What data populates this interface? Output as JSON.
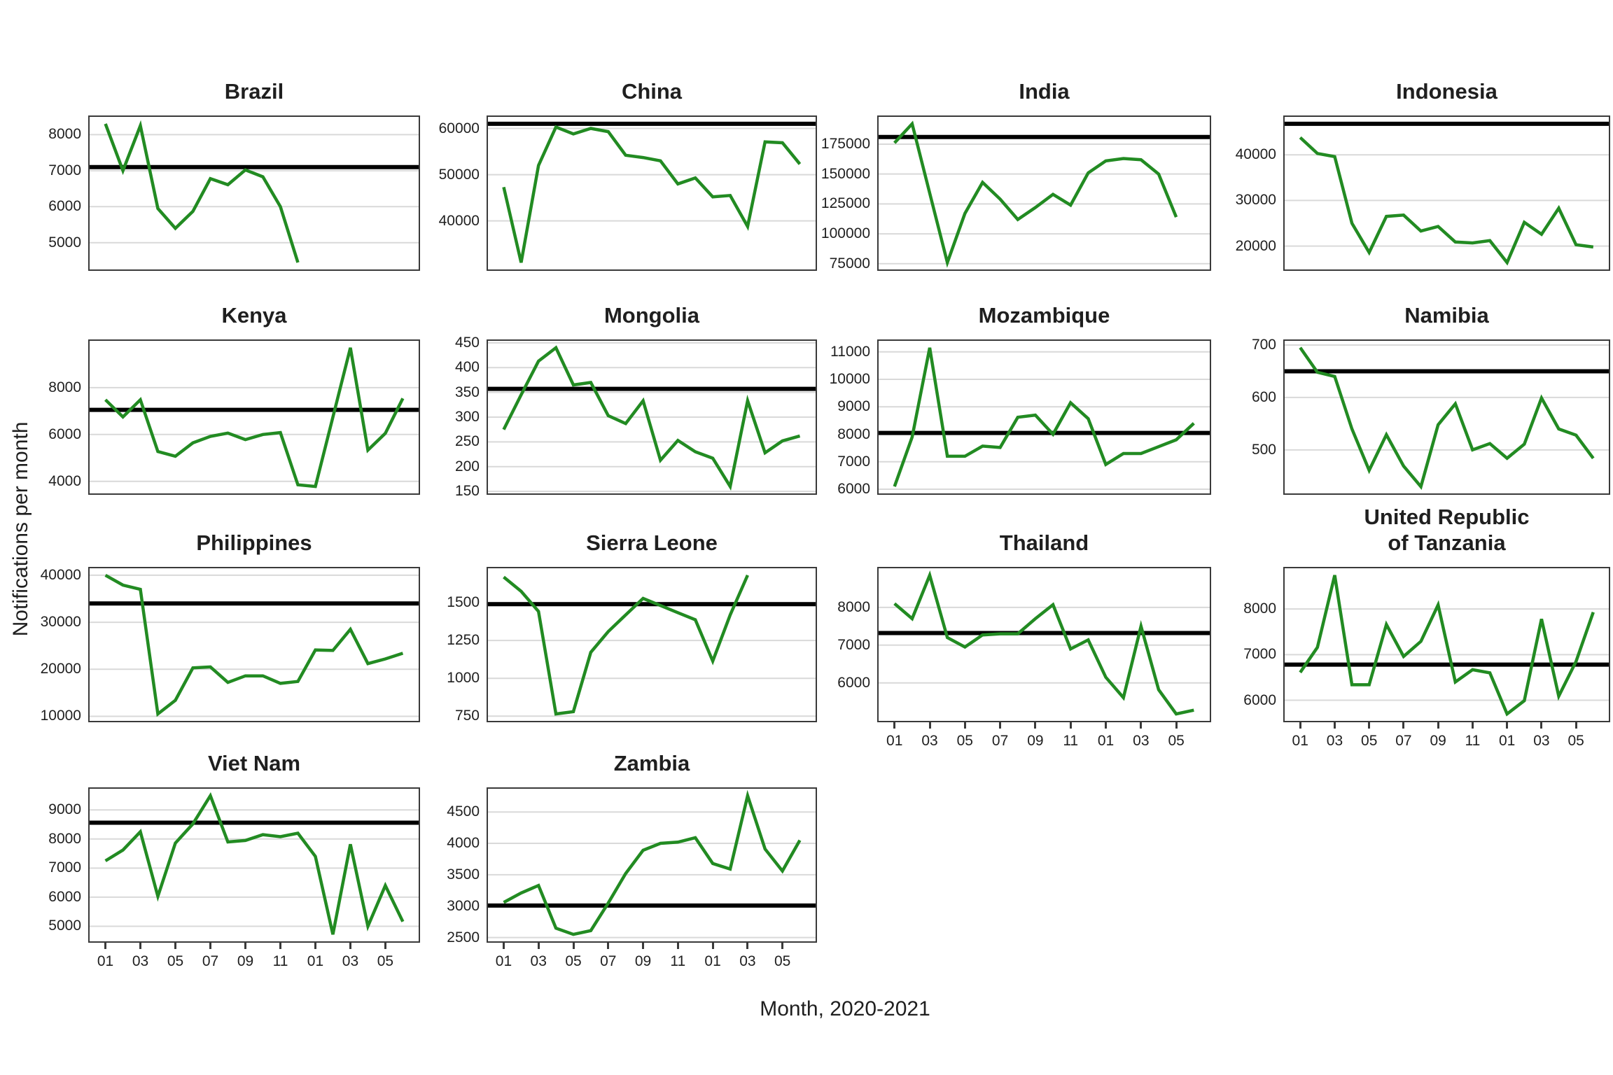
{
  "figure": {
    "y_axis_label": "Notifications per month",
    "x_axis_label": "Month, 2020-2021",
    "line_color": "#228B22",
    "ref_line_color": "#000000",
    "grid_color": "#d9d9d9",
    "border_color": "#3a3a3a",
    "x_tick_labels": [
      "01",
      "03",
      "05",
      "07",
      "09",
      "11",
      "01",
      "03",
      "05"
    ],
    "x_tick_indices": [
      0,
      2,
      4,
      6,
      8,
      10,
      12,
      14,
      16
    ],
    "n_slots": 18
  },
  "chart_data": [
    {
      "type": "line",
      "id": "brazil",
      "title": "Brazil",
      "col": 0,
      "row": 0,
      "show_x": false,
      "yticks": [
        5000,
        6000,
        7000,
        8000
      ],
      "ylim": [
        4257,
        8493
      ],
      "ref": 7100,
      "values": [
        8300,
        7000,
        8250,
        5950,
        5400,
        5870,
        6780,
        6610,
        7020,
        6830,
        6000,
        4450
      ]
    },
    {
      "type": "line",
      "id": "china",
      "title": "China",
      "col": 1,
      "row": 0,
      "show_x": false,
      "yticks": [
        40000,
        50000,
        60000
      ],
      "ylim": [
        29500,
        62500
      ],
      "ref": 61000,
      "values": [
        47300,
        31000,
        52000,
        60300,
        58800,
        60000,
        59300,
        54200,
        53700,
        53000,
        48000,
        49300,
        45200,
        45500,
        38800,
        57100,
        56900,
        52300
      ]
    },
    {
      "type": "line",
      "id": "india",
      "title": "India",
      "col": 2,
      "row": 0,
      "show_x": false,
      "yticks": [
        75000,
        100000,
        125000,
        150000,
        175000
      ],
      "ylim": [
        70200,
        197800
      ],
      "ref": 181000,
      "values": [
        176000,
        192000,
        134000,
        76000,
        117000,
        143000,
        129000,
        112000,
        122000,
        133000,
        124000,
        151000,
        161000,
        163000,
        162000,
        150000,
        114000
      ]
    },
    {
      "type": "line",
      "id": "indonesia",
      "title": "Indonesia",
      "col": 3,
      "row": 0,
      "show_x": false,
      "yticks": [
        20000,
        30000,
        40000
      ],
      "ylim": [
        14880,
        48320
      ],
      "ref": 46800,
      "values": [
        43800,
        40300,
        39600,
        25000,
        18600,
        26500,
        26800,
        23300,
        24300,
        20900,
        20700,
        21200,
        16400,
        25200,
        22600,
        28300,
        20300,
        19800
      ]
    },
    {
      "type": "line",
      "id": "kenya",
      "title": "Kenya",
      "col": 0,
      "row": 1,
      "show_x": false,
      "yticks": [
        4000,
        6000,
        8000
      ],
      "ylim": [
        3484,
        9996
      ],
      "ref": 7050,
      "values": [
        7480,
        6750,
        7480,
        5270,
        5070,
        5640,
        5920,
        6060,
        5780,
        6000,
        6080,
        3850,
        3780,
        6740,
        9700,
        5330,
        6050,
        7540
      ]
    },
    {
      "type": "line",
      "id": "mongolia",
      "title": "Mongolia",
      "col": 1,
      "row": 1,
      "show_x": false,
      "yticks": [
        150,
        200,
        250,
        300,
        350,
        400,
        450
      ],
      "ylim": [
        146,
        454
      ],
      "ref": 357,
      "values": [
        275,
        345,
        413,
        440,
        365,
        370,
        303,
        287,
        333,
        213,
        253,
        230,
        217,
        160,
        333,
        228,
        252,
        262
      ]
    },
    {
      "type": "line",
      "id": "mozambique",
      "title": "Mozambique",
      "col": 2,
      "row": 1,
      "show_x": false,
      "yticks": [
        6000,
        7000,
        8000,
        9000,
        10000,
        11000
      ],
      "ylim": [
        5848,
        11402
      ],
      "ref": 8050,
      "values": [
        6100,
        7900,
        11150,
        7200,
        7200,
        7570,
        7520,
        8620,
        8700,
        8000,
        9150,
        8570,
        6900,
        7300,
        7300,
        7550,
        7800,
        8400
      ]
    },
    {
      "type": "line",
      "id": "namibia",
      "title": "Namibia",
      "col": 3,
      "row": 1,
      "show_x": false,
      "yticks": [
        500,
        600,
        700
      ],
      "ylim": [
        417,
        708
      ],
      "ref": 650,
      "values": [
        695,
        648,
        640,
        540,
        461,
        529,
        469,
        430,
        548,
        588,
        500,
        512,
        484,
        511,
        599,
        540,
        528,
        484
      ]
    },
    {
      "type": "line",
      "id": "philippines",
      "title": "Philippines",
      "col": 0,
      "row": 2,
      "show_x": false,
      "yticks": [
        10000,
        20000,
        30000,
        40000
      ],
      "ylim": [
        9025,
        41475
      ],
      "ref": 34000,
      "values": [
        40000,
        37900,
        37000,
        10500,
        13400,
        20300,
        20500,
        17200,
        18600,
        18600,
        17000,
        17400,
        24100,
        24000,
        28500,
        21200,
        22200,
        23400
      ]
    },
    {
      "type": "line",
      "id": "sierra-leone",
      "title": "Sierra Leone",
      "col": 1,
      "row": 2,
      "show_x": false,
      "yticks": [
        750,
        1000,
        1250,
        1500
      ],
      "ylim": [
        719,
        1727
      ],
      "ref": 1490,
      "values": [
        1669,
        1575,
        1442,
        765,
        780,
        1172,
        1309,
        1419,
        1528,
        1481,
        1434,
        1387,
        1114,
        1419,
        1681
      ]
    },
    {
      "type": "line",
      "id": "thailand",
      "title": "Thailand",
      "col": 2,
      "row": 2,
      "show_x": true,
      "yticks": [
        6000,
        7000,
        8000
      ],
      "ylim": [
        4996,
        9034
      ],
      "ref": 7320,
      "values": [
        8100,
        7700,
        8850,
        7200,
        6950,
        7270,
        7300,
        7300,
        7700,
        8070,
        6900,
        7140,
        6150,
        5610,
        7500,
        5820,
        5180,
        5280
      ]
    },
    {
      "type": "line",
      "id": "tanzania",
      "title": "United Republic\nof Tanzania",
      "col": 3,
      "row": 2,
      "show_x": true,
      "yticks": [
        6000,
        7000,
        8000
      ],
      "ylim": [
        5548,
        8892
      ],
      "ref": 6780,
      "values": [
        6610,
        7160,
        8740,
        6340,
        6340,
        7660,
        6960,
        7290,
        8090,
        6400,
        6670,
        6600,
        5700,
        5990,
        7780,
        6090,
        6850,
        7930
      ]
    },
    {
      "type": "line",
      "id": "viet-nam",
      "title": "Viet Nam",
      "col": 0,
      "row": 3,
      "show_x": true,
      "yticks": [
        5000,
        6000,
        7000,
        8000,
        9000
      ],
      "ylim": [
        4482,
        9728
      ],
      "ref": 8560,
      "values": [
        7250,
        7620,
        8250,
        6030,
        7860,
        8520,
        9490,
        7900,
        7950,
        8150,
        8080,
        8200,
        7400,
        4720,
        7820,
        5000,
        6400,
        5160
      ]
    },
    {
      "type": "line",
      "id": "zambia",
      "title": "Zambia",
      "col": 1,
      "row": 3,
      "show_x": true,
      "yticks": [
        2500,
        3000,
        3500,
        4000,
        4500
      ],
      "ylim": [
        2440,
        4870
      ],
      "ref": 3010,
      "values": [
        3060,
        3210,
        3330,
        2650,
        2550,
        2610,
        3050,
        3520,
        3890,
        4000,
        4020,
        4090,
        3680,
        3590,
        4760,
        3910,
        3560,
        4050
      ]
    }
  ]
}
